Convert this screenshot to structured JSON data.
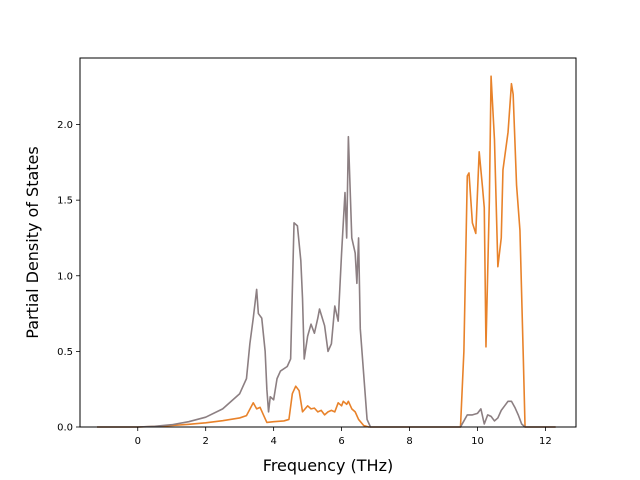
{
  "chart_data": {
    "type": "line",
    "title": "",
    "xlabel": "Frequency (THz)",
    "ylabel": "Partial Density of States",
    "xlim": [
      -1.7,
      12.9
    ],
    "ylim": [
      0,
      2.44
    ],
    "xticks": [
      0,
      2,
      4,
      6,
      8,
      10,
      12
    ],
    "xtick_labels": [
      "0",
      "2",
      "4",
      "6",
      "8",
      "10",
      "12"
    ],
    "yticks": [
      0.0,
      0.5,
      1.0,
      1.5,
      2.0
    ],
    "ytick_labels": [
      "0.0",
      "0.5",
      "1.0",
      "1.5",
      "2.0"
    ],
    "grid": false,
    "series": [
      {
        "color": "#e8822a",
        "points": [
          [
            -1.2,
            0
          ],
          [
            0,
            0
          ],
          [
            0.5,
            0.004
          ],
          [
            1,
            0.01
          ],
          [
            1.5,
            0.018
          ],
          [
            2,
            0.028
          ],
          [
            2.5,
            0.042
          ],
          [
            3,
            0.06
          ],
          [
            3.2,
            0.075
          ],
          [
            3.4,
            0.16
          ],
          [
            3.5,
            0.12
          ],
          [
            3.6,
            0.13
          ],
          [
            3.7,
            0.08
          ],
          [
            3.8,
            0.03
          ],
          [
            4,
            0.035
          ],
          [
            4.3,
            0.04
          ],
          [
            4.45,
            0.05
          ],
          [
            4.55,
            0.22
          ],
          [
            4.65,
            0.27
          ],
          [
            4.75,
            0.24
          ],
          [
            4.85,
            0.1
          ],
          [
            5,
            0.14
          ],
          [
            5.1,
            0.12
          ],
          [
            5.2,
            0.125
          ],
          [
            5.3,
            0.1
          ],
          [
            5.4,
            0.11
          ],
          [
            5.5,
            0.08
          ],
          [
            5.6,
            0.1
          ],
          [
            5.7,
            0.11
          ],
          [
            5.8,
            0.1
          ],
          [
            5.9,
            0.16
          ],
          [
            6,
            0.14
          ],
          [
            6.05,
            0.17
          ],
          [
            6.15,
            0.15
          ],
          [
            6.2,
            0.17
          ],
          [
            6.3,
            0.12
          ],
          [
            6.4,
            0.1
          ],
          [
            6.5,
            0.05
          ],
          [
            6.65,
            0.01
          ],
          [
            6.8,
            0
          ],
          [
            9.5,
            0
          ],
          [
            9.6,
            0.5
          ],
          [
            9.7,
            1.66
          ],
          [
            9.75,
            1.68
          ],
          [
            9.85,
            1.35
          ],
          [
            9.95,
            1.28
          ],
          [
            10.05,
            1.82
          ],
          [
            10.15,
            1.58
          ],
          [
            10.2,
            1.45
          ],
          [
            10.25,
            0.53
          ],
          [
            10.35,
            1.5
          ],
          [
            10.4,
            2.32
          ],
          [
            10.5,
            1.9
          ],
          [
            10.6,
            1.06
          ],
          [
            10.7,
            1.25
          ],
          [
            10.75,
            1.7
          ],
          [
            10.9,
            1.95
          ],
          [
            11,
            2.27
          ],
          [
            11.05,
            2.2
          ],
          [
            11.15,
            1.6
          ],
          [
            11.25,
            1.3
          ],
          [
            11.35,
            0.45
          ],
          [
            11.4,
            0
          ],
          [
            12.3,
            0
          ]
        ]
      },
      {
        "color": "#8c7f82",
        "points": [
          [
            -1.2,
            0
          ],
          [
            0,
            0
          ],
          [
            0.5,
            0.005
          ],
          [
            1,
            0.015
          ],
          [
            1.5,
            0.035
          ],
          [
            2,
            0.065
          ],
          [
            2.5,
            0.12
          ],
          [
            3,
            0.22
          ],
          [
            3.2,
            0.32
          ],
          [
            3.3,
            0.55
          ],
          [
            3.4,
            0.72
          ],
          [
            3.5,
            0.91
          ],
          [
            3.55,
            0.75
          ],
          [
            3.65,
            0.72
          ],
          [
            3.75,
            0.5
          ],
          [
            3.8,
            0.25
          ],
          [
            3.85,
            0.1
          ],
          [
            3.9,
            0.2
          ],
          [
            4,
            0.18
          ],
          [
            4.1,
            0.32
          ],
          [
            4.2,
            0.37
          ],
          [
            4.4,
            0.4
          ],
          [
            4.5,
            0.45
          ],
          [
            4.6,
            1.35
          ],
          [
            4.7,
            1.33
          ],
          [
            4.8,
            1.1
          ],
          [
            4.85,
            0.85
          ],
          [
            4.9,
            0.45
          ],
          [
            5,
            0.6
          ],
          [
            5.1,
            0.68
          ],
          [
            5.2,
            0.62
          ],
          [
            5.3,
            0.72
          ],
          [
            5.35,
            0.78
          ],
          [
            5.5,
            0.67
          ],
          [
            5.6,
            0.5
          ],
          [
            5.7,
            0.55
          ],
          [
            5.8,
            0.8
          ],
          [
            5.9,
            0.7
          ],
          [
            6,
            1.15
          ],
          [
            6.1,
            1.55
          ],
          [
            6.15,
            1.25
          ],
          [
            6.2,
            1.92
          ],
          [
            6.3,
            1.25
          ],
          [
            6.4,
            1.15
          ],
          [
            6.45,
            0.95
          ],
          [
            6.5,
            1.25
          ],
          [
            6.55,
            0.65
          ],
          [
            6.65,
            0.35
          ],
          [
            6.75,
            0.05
          ],
          [
            6.85,
            0
          ],
          [
            9.5,
            0
          ],
          [
            9.6,
            0.04
          ],
          [
            9.7,
            0.08
          ],
          [
            9.85,
            0.08
          ],
          [
            10,
            0.09
          ],
          [
            10.1,
            0.12
          ],
          [
            10.2,
            0.02
          ],
          [
            10.3,
            0.08
          ],
          [
            10.4,
            0.07
          ],
          [
            10.5,
            0.04
          ],
          [
            10.6,
            0.06
          ],
          [
            10.7,
            0.11
          ],
          [
            10.8,
            0.14
          ],
          [
            10.9,
            0.17
          ],
          [
            11,
            0.17
          ],
          [
            11.1,
            0.13
          ],
          [
            11.2,
            0.08
          ],
          [
            11.3,
            0.02
          ],
          [
            11.4,
            0
          ],
          [
            12.3,
            0
          ]
        ]
      }
    ]
  }
}
